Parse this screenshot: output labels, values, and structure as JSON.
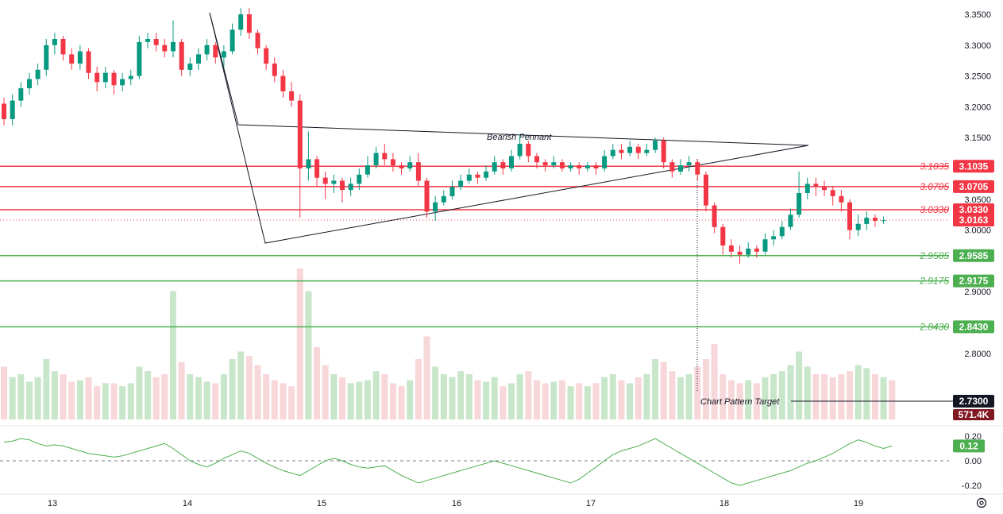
{
  "chart_data": {
    "type": "candlestick",
    "x_tick_labels": [
      "13",
      "14",
      "15",
      "16",
      "17",
      "18",
      "19"
    ],
    "price_axis": {
      "ticks": [
        "3.3500",
        "3.3000",
        "3.2500",
        "3.2000",
        "3.1500",
        "3.0500",
        "3.0000",
        "2.9000",
        "2.8000"
      ],
      "range": [
        2.73,
        3.355
      ]
    },
    "levels": [
      {
        "label": "3.1035",
        "value": 3.1035,
        "color": "#f23645"
      },
      {
        "label": "3.0705",
        "value": 3.0705,
        "color": "#f23645"
      },
      {
        "label": "3.0330",
        "value": 3.033,
        "color": "#f23645"
      },
      {
        "label": "2.9585",
        "value": 2.9585,
        "color": "#4caf50"
      },
      {
        "label": "2.9175",
        "value": 2.9175,
        "color": "#4caf50"
      },
      {
        "label": "2.8430",
        "value": 2.843,
        "color": "#4caf50"
      }
    ],
    "current_price": {
      "label": "3.0163",
      "value": 3.0163,
      "color": "#f23645"
    },
    "annotations": {
      "pattern_label": "Bearish Pennant",
      "target_label": "Chart Pattern Target",
      "target_price": "2.7300",
      "volume_label": "571.4K"
    },
    "volume_color_up": "#c8e6c9",
    "volume_color_down": "#f8d7da",
    "up_color": "#089981",
    "down_color": "#f23645",
    "candles": [
      [
        3.205,
        3.18,
        3.215,
        3.17
      ],
      [
        3.18,
        3.21,
        3.22,
        3.17
      ],
      [
        3.21,
        3.23,
        3.24,
        3.2
      ],
      [
        3.23,
        3.245,
        3.255,
        3.22
      ],
      [
        3.245,
        3.26,
        3.27,
        3.235
      ],
      [
        3.26,
        3.3,
        3.31,
        3.25
      ],
      [
        3.3,
        3.31,
        3.32,
        3.285
      ],
      [
        3.31,
        3.285,
        3.315,
        3.275
      ],
      [
        3.285,
        3.27,
        3.295,
        3.26
      ],
      [
        3.27,
        3.29,
        3.3,
        3.26
      ],
      [
        3.29,
        3.255,
        3.295,
        3.245
      ],
      [
        3.255,
        3.24,
        3.265,
        3.225
      ],
      [
        3.24,
        3.255,
        3.265,
        3.23
      ],
      [
        3.255,
        3.235,
        3.26,
        3.22
      ],
      [
        3.235,
        3.245,
        3.255,
        3.225
      ],
      [
        3.245,
        3.25,
        3.26,
        3.235
      ],
      [
        3.25,
        3.305,
        3.315,
        3.245
      ],
      [
        3.305,
        3.31,
        3.32,
        3.295
      ],
      [
        3.31,
        3.3,
        3.32,
        3.29
      ],
      [
        3.3,
        3.29,
        3.31,
        3.28
      ],
      [
        3.29,
        3.305,
        3.34,
        3.28
      ],
      [
        3.305,
        3.26,
        3.31,
        3.25
      ],
      [
        3.26,
        3.27,
        3.28,
        3.25
      ],
      [
        3.27,
        3.285,
        3.295,
        3.26
      ],
      [
        3.285,
        3.3,
        3.31,
        3.275
      ],
      [
        3.3,
        3.28,
        3.305,
        3.27
      ],
      [
        3.28,
        3.29,
        3.3,
        3.265
      ],
      [
        3.29,
        3.325,
        3.335,
        3.285
      ],
      [
        3.325,
        3.35,
        3.36,
        3.315
      ],
      [
        3.35,
        3.32,
        3.36,
        3.31
      ],
      [
        3.32,
        3.295,
        3.325,
        3.285
      ],
      [
        3.295,
        3.27,
        3.3,
        3.26
      ],
      [
        3.27,
        3.25,
        3.28,
        3.24
      ],
      [
        3.25,
        3.225,
        3.26,
        3.215
      ],
      [
        3.225,
        3.21,
        3.24,
        3.2
      ],
      [
        3.21,
        3.1,
        3.22,
        3.02
      ],
      [
        3.1,
        3.115,
        3.16,
        3.08
      ],
      [
        3.115,
        3.085,
        3.12,
        3.07
      ],
      [
        3.085,
        3.075,
        3.095,
        3.05
      ],
      [
        3.075,
        3.08,
        3.09,
        3.06
      ],
      [
        3.08,
        3.065,
        3.085,
        3.045
      ],
      [
        3.065,
        3.075,
        3.085,
        3.055
      ],
      [
        3.075,
        3.09,
        3.1,
        3.065
      ],
      [
        3.09,
        3.105,
        3.12,
        3.085
      ],
      [
        3.105,
        3.125,
        3.135,
        3.1
      ],
      [
        3.125,
        3.115,
        3.14,
        3.105
      ],
      [
        3.115,
        3.105,
        3.125,
        3.095
      ],
      [
        3.105,
        3.1,
        3.11,
        3.09
      ],
      [
        3.1,
        3.11,
        3.12,
        3.095
      ],
      [
        3.11,
        3.08,
        3.125,
        3.07
      ],
      [
        3.08,
        3.03,
        3.085,
        3.02
      ],
      [
        3.03,
        3.045,
        3.055,
        3.015
      ],
      [
        3.045,
        3.055,
        3.065,
        3.04
      ],
      [
        3.055,
        3.07,
        3.08,
        3.05
      ],
      [
        3.07,
        3.08,
        3.09,
        3.065
      ],
      [
        3.08,
        3.09,
        3.1,
        3.075
      ],
      [
        3.09,
        3.085,
        3.095,
        3.075
      ],
      [
        3.085,
        3.095,
        3.105,
        3.08
      ],
      [
        3.095,
        3.11,
        3.12,
        3.09
      ],
      [
        3.11,
        3.1,
        3.115,
        3.09
      ],
      [
        3.1,
        3.12,
        3.13,
        3.095
      ],
      [
        3.12,
        3.14,
        3.155,
        3.115
      ],
      [
        3.14,
        3.12,
        3.145,
        3.11
      ],
      [
        3.12,
        3.11,
        3.125,
        3.1
      ],
      [
        3.11,
        3.105,
        3.115,
        3.095
      ],
      [
        3.105,
        3.11,
        3.12,
        3.1
      ],
      [
        3.11,
        3.1,
        3.115,
        3.095
      ],
      [
        3.1,
        3.105,
        3.11,
        3.095
      ],
      [
        3.105,
        3.1,
        3.11,
        3.09
      ],
      [
        3.1,
        3.105,
        3.11,
        3.095
      ],
      [
        3.105,
        3.1,
        3.11,
        3.09
      ],
      [
        3.1,
        3.12,
        3.13,
        3.095
      ],
      [
        3.12,
        3.13,
        3.14,
        3.115
      ],
      [
        3.13,
        3.125,
        3.14,
        3.115
      ],
      [
        3.125,
        3.135,
        3.145,
        3.12
      ],
      [
        3.135,
        3.125,
        3.14,
        3.115
      ],
      [
        3.125,
        3.13,
        3.14,
        3.12
      ],
      [
        3.13,
        3.145,
        3.15,
        3.125
      ],
      [
        3.145,
        3.11,
        3.15,
        3.1
      ],
      [
        3.11,
        3.095,
        3.115,
        3.085
      ],
      [
        3.095,
        3.105,
        3.115,
        3.09
      ],
      [
        3.105,
        3.11,
        3.12,
        3.095
      ],
      [
        3.11,
        3.09,
        3.115,
        3.08
      ],
      [
        3.09,
        3.04,
        3.095,
        3.03
      ],
      [
        3.04,
        3.005,
        3.045,
        2.995
      ],
      [
        3.005,
        2.975,
        3.01,
        2.96
      ],
      [
        2.975,
        2.965,
        2.985,
        2.955
      ],
      [
        2.965,
        2.96,
        2.975,
        2.945
      ],
      [
        2.96,
        2.97,
        2.98,
        2.955
      ],
      [
        2.97,
        2.965,
        2.975,
        2.955
      ],
      [
        2.965,
        2.985,
        2.995,
        2.96
      ],
      [
        2.985,
        2.99,
        3.0,
        2.975
      ],
      [
        2.99,
        3.005,
        3.015,
        2.985
      ],
      [
        3.005,
        3.025,
        3.035,
        3.0
      ],
      [
        3.025,
        3.06,
        3.095,
        3.02
      ],
      [
        3.06,
        3.075,
        3.085,
        3.05
      ],
      [
        3.075,
        3.07,
        3.085,
        3.055
      ],
      [
        3.07,
        3.065,
        3.08,
        3.055
      ],
      [
        3.065,
        3.055,
        3.07,
        3.04
      ],
      [
        3.055,
        3.045,
        3.065,
        3.03
      ],
      [
        3.045,
        3.0,
        3.05,
        2.985
      ],
      [
        3.0,
        3.01,
        3.025,
        2.99
      ],
      [
        3.01,
        3.02,
        3.03,
        3.0
      ],
      [
        3.02,
        3.015,
        3.025,
        3.005
      ],
      [
        3.015,
        3.016,
        3.022,
        3.01
      ]
    ],
    "volumes": [
      35,
      28,
      30,
      25,
      28,
      40,
      32,
      30,
      25,
      26,
      28,
      22,
      24,
      24,
      22,
      24,
      35,
      32,
      28,
      30,
      85,
      38,
      30,
      28,
      25,
      24,
      30,
      40,
      45,
      42,
      36,
      30,
      26,
      24,
      22,
      100,
      85,
      48,
      36,
      30,
      28,
      24,
      25,
      26,
      32,
      30,
      24,
      22,
      26,
      40,
      55,
      35,
      30,
      28,
      32,
      30,
      26,
      25,
      28,
      22,
      24,
      30,
      32,
      26,
      24,
      25,
      26,
      22,
      24,
      22,
      24,
      28,
      30,
      26,
      24,
      28,
      30,
      40,
      38,
      32,
      28,
      30,
      35,
      40,
      50,
      30,
      26,
      24,
      26,
      24,
      28,
      30,
      32,
      36,
      45,
      35,
      30,
      30,
      28,
      30,
      32,
      36,
      34,
      30,
      28,
      26
    ],
    "osc_ticks": [
      "0.20",
      "0.00",
      "-0.20"
    ],
    "osc_values": [
      0.15,
      0.16,
      0.18,
      0.17,
      0.14,
      0.12,
      0.13,
      0.12,
      0.1,
      0.08,
      0.06,
      0.05,
      0.04,
      0.03,
      0.04,
      0.06,
      0.08,
      0.1,
      0.12,
      0.14,
      0.1,
      0.05,
      0.0,
      -0.03,
      -0.05,
      -0.02,
      0.02,
      0.05,
      0.08,
      0.06,
      0.02,
      -0.02,
      -0.05,
      -0.08,
      -0.1,
      -0.12,
      -0.08,
      -0.04,
      0.0,
      0.02,
      0.0,
      -0.03,
      -0.05,
      -0.06,
      -0.05,
      -0.04,
      -0.08,
      -0.12,
      -0.15,
      -0.18,
      -0.16,
      -0.14,
      -0.12,
      -0.1,
      -0.08,
      -0.06,
      -0.04,
      -0.02,
      0.0,
      -0.02,
      -0.04,
      -0.06,
      -0.08,
      -0.1,
      -0.12,
      -0.14,
      -0.16,
      -0.18,
      -0.15,
      -0.1,
      -0.05,
      0.0,
      0.05,
      0.08,
      0.1,
      0.12,
      0.15,
      0.18,
      0.14,
      0.1,
      0.06,
      0.02,
      -0.02,
      -0.06,
      -0.1,
      -0.14,
      -0.18,
      -0.2,
      -0.18,
      -0.16,
      -0.14,
      -0.12,
      -0.1,
      -0.08,
      -0.05,
      -0.02,
      0.0,
      0.03,
      0.06,
      0.1,
      0.14,
      0.17,
      0.15,
      0.12,
      0.1,
      0.12
    ]
  }
}
